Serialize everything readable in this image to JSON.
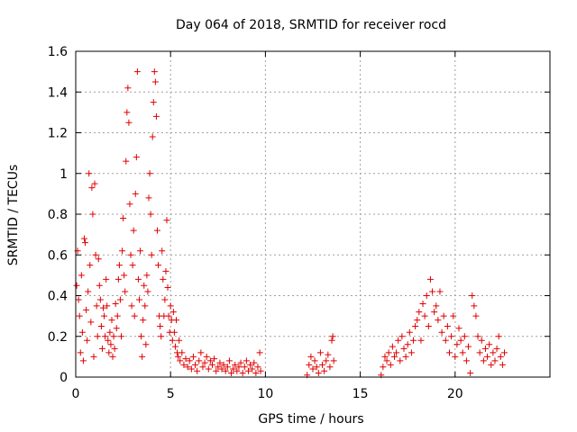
{
  "chart_data": {
    "type": "scatter",
    "title": "Day 064 of 2018, SRMTID for receiver rocd",
    "xlabel": "GPS time / hours",
    "ylabel": "SRMTID / TECUs",
    "xlim": [
      0,
      25
    ],
    "ylim": [
      0,
      1.6
    ],
    "xticks": [
      0,
      5,
      10,
      15,
      20
    ],
    "xtick_labels": [
      "0",
      "5",
      "10",
      "15",
      "20"
    ],
    "yticks": [
      0,
      0.2,
      0.4,
      0.6,
      0.8,
      1.0,
      1.2,
      1.4,
      1.6
    ],
    "ytick_labels": [
      "0",
      "0.2",
      "0.4",
      "0.6",
      "0.8",
      "1",
      "1.2",
      "1.4",
      "1.6"
    ],
    "grid": true,
    "marker": "+",
    "color": "#e00000",
    "series": [
      {
        "name": "SRMTID",
        "points": [
          [
            0.05,
            0.45
          ],
          [
            0.1,
            0.62
          ],
          [
            0.15,
            0.38
          ],
          [
            0.2,
            0.3
          ],
          [
            0.25,
            0.12
          ],
          [
            0.3,
            0.5
          ],
          [
            0.35,
            0.22
          ],
          [
            0.4,
            0.08
          ],
          [
            0.45,
            0.68
          ],
          [
            0.5,
            0.66
          ],
          [
            0.55,
            0.33
          ],
          [
            0.6,
            0.18
          ],
          [
            0.65,
            0.42
          ],
          [
            0.7,
            1.0
          ],
          [
            0.75,
            0.55
          ],
          [
            0.8,
            0.27
          ],
          [
            0.85,
            0.93
          ],
          [
            0.9,
            0.8
          ],
          [
            0.95,
            0.1
          ],
          [
            1.0,
            0.95
          ],
          [
            1.05,
            0.6
          ],
          [
            1.1,
            0.35
          ],
          [
            1.15,
            0.2
          ],
          [
            1.2,
            0.58
          ],
          [
            1.25,
            0.45
          ],
          [
            1.3,
            0.38
          ],
          [
            1.35,
            0.25
          ],
          [
            1.4,
            0.14
          ],
          [
            1.45,
            0.34
          ],
          [
            1.5,
            0.3
          ],
          [
            1.55,
            0.2
          ],
          [
            1.6,
            0.48
          ],
          [
            1.65,
            0.35
          ],
          [
            1.7,
            0.18
          ],
          [
            1.75,
            0.12
          ],
          [
            1.8,
            0.22
          ],
          [
            1.85,
            0.16
          ],
          [
            1.9,
            0.28
          ],
          [
            1.95,
            0.1
          ],
          [
            2.0,
            0.2
          ],
          [
            2.05,
            0.14
          ],
          [
            2.1,
            0.36
          ],
          [
            2.15,
            0.24
          ],
          [
            2.2,
            0.3
          ],
          [
            2.25,
            0.48
          ],
          [
            2.3,
            0.55
          ],
          [
            2.35,
            0.38
          ],
          [
            2.4,
            0.2
          ],
          [
            2.45,
            0.62
          ],
          [
            2.5,
            0.78
          ],
          [
            2.55,
            0.5
          ],
          [
            2.6,
            0.42
          ],
          [
            2.65,
            1.06
          ],
          [
            2.7,
            1.3
          ],
          [
            2.75,
            1.42
          ],
          [
            2.8,
            1.25
          ],
          [
            2.85,
            0.85
          ],
          [
            2.9,
            0.6
          ],
          [
            2.95,
            0.35
          ],
          [
            3.0,
            0.55
          ],
          [
            3.05,
            0.72
          ],
          [
            3.1,
            0.3
          ],
          [
            3.15,
            0.9
          ],
          [
            3.2,
            1.08
          ],
          [
            3.25,
            1.5
          ],
          [
            3.3,
            0.48
          ],
          [
            3.35,
            0.38
          ],
          [
            3.4,
            0.62
          ],
          [
            3.45,
            0.2
          ],
          [
            3.5,
            0.1
          ],
          [
            3.55,
            0.28
          ],
          [
            3.6,
            0.45
          ],
          [
            3.65,
            0.35
          ],
          [
            3.7,
            0.16
          ],
          [
            3.75,
            0.5
          ],
          [
            3.8,
            0.42
          ],
          [
            3.85,
            0.88
          ],
          [
            3.9,
            1.0
          ],
          [
            3.95,
            0.8
          ],
          [
            4.0,
            0.6
          ],
          [
            4.05,
            1.18
          ],
          [
            4.1,
            1.35
          ],
          [
            4.15,
            1.5
          ],
          [
            4.2,
            1.45
          ],
          [
            4.25,
            1.28
          ],
          [
            4.3,
            0.72
          ],
          [
            4.35,
            0.55
          ],
          [
            4.4,
            0.3
          ],
          [
            4.45,
            0.25
          ],
          [
            4.5,
            0.2
          ],
          [
            4.55,
            0.62
          ],
          [
            4.6,
            0.48
          ],
          [
            4.65,
            0.3
          ],
          [
            4.7,
            0.38
          ],
          [
            4.75,
            0.52
          ],
          [
            4.8,
            0.77
          ],
          [
            4.85,
            0.44
          ],
          [
            4.9,
            0.3
          ],
          [
            4.95,
            0.22
          ],
          [
            5.0,
            0.35
          ],
          [
            5.05,
            0.28
          ],
          [
            5.1,
            0.18
          ],
          [
            5.15,
            0.32
          ],
          [
            5.2,
            0.22
          ],
          [
            5.25,
            0.15
          ],
          [
            5.3,
            0.28
          ],
          [
            5.35,
            0.12
          ],
          [
            5.4,
            0.1
          ],
          [
            5.45,
            0.18
          ],
          [
            5.5,
            0.08
          ],
          [
            5.6,
            0.12
          ],
          [
            5.7,
            0.06
          ],
          [
            5.8,
            0.09
          ],
          [
            5.9,
            0.05
          ],
          [
            6.0,
            0.08
          ],
          [
            6.1,
            0.04
          ],
          [
            6.2,
            0.1
          ],
          [
            6.3,
            0.06
          ],
          [
            6.4,
            0.03
          ],
          [
            6.5,
            0.08
          ],
          [
            6.6,
            0.12
          ],
          [
            6.7,
            0.05
          ],
          [
            6.8,
            0.07
          ],
          [
            6.9,
            0.1
          ],
          [
            7.0,
            0.04
          ],
          [
            7.1,
            0.08
          ],
          [
            7.2,
            0.06
          ],
          [
            7.3,
            0.09
          ],
          [
            7.4,
            0.03
          ],
          [
            7.5,
            0.05
          ],
          [
            7.6,
            0.07
          ],
          [
            7.7,
            0.04
          ],
          [
            7.8,
            0.06
          ],
          [
            7.9,
            0.03
          ],
          [
            8.0,
            0.05
          ],
          [
            8.1,
            0.08
          ],
          [
            8.2,
            0.02
          ],
          [
            8.3,
            0.04
          ],
          [
            8.4,
            0.06
          ],
          [
            8.5,
            0.03
          ],
          [
            8.6,
            0.05
          ],
          [
            8.7,
            0.07
          ],
          [
            8.8,
            0.02
          ],
          [
            8.9,
            0.05
          ],
          [
            9.0,
            0.08
          ],
          [
            9.1,
            0.03
          ],
          [
            9.2,
            0.06
          ],
          [
            9.3,
            0.04
          ],
          [
            9.4,
            0.07
          ],
          [
            9.5,
            0.02
          ],
          [
            9.6,
            0.05
          ],
          [
            9.7,
            0.12
          ],
          [
            9.75,
            0.03
          ],
          [
            12.2,
            0.01
          ],
          [
            12.3,
            0.06
          ],
          [
            12.4,
            0.1
          ],
          [
            12.5,
            0.04
          ],
          [
            12.6,
            0.08
          ],
          [
            12.7,
            0.05
          ],
          [
            12.8,
            0.02
          ],
          [
            12.9,
            0.12
          ],
          [
            13.0,
            0.06
          ],
          [
            13.1,
            0.03
          ],
          [
            13.2,
            0.08
          ],
          [
            13.3,
            0.11
          ],
          [
            13.4,
            0.05
          ],
          [
            13.5,
            0.18
          ],
          [
            13.55,
            0.2
          ],
          [
            13.6,
            0.08
          ],
          [
            16.1,
            0.01
          ],
          [
            16.2,
            0.05
          ],
          [
            16.3,
            0.1
          ],
          [
            16.4,
            0.08
          ],
          [
            16.5,
            0.12
          ],
          [
            16.6,
            0.06
          ],
          [
            16.7,
            0.15
          ],
          [
            16.8,
            0.1
          ],
          [
            16.9,
            0.12
          ],
          [
            17.0,
            0.18
          ],
          [
            17.1,
            0.08
          ],
          [
            17.2,
            0.2
          ],
          [
            17.3,
            0.14
          ],
          [
            17.4,
            0.1
          ],
          [
            17.5,
            0.16
          ],
          [
            17.6,
            0.22
          ],
          [
            17.7,
            0.12
          ],
          [
            17.8,
            0.18
          ],
          [
            17.9,
            0.25
          ],
          [
            18.0,
            0.28
          ],
          [
            18.1,
            0.32
          ],
          [
            18.2,
            0.18
          ],
          [
            18.3,
            0.36
          ],
          [
            18.4,
            0.3
          ],
          [
            18.5,
            0.4
          ],
          [
            18.6,
            0.25
          ],
          [
            18.7,
            0.48
          ],
          [
            18.8,
            0.42
          ],
          [
            18.9,
            0.32
          ],
          [
            19.0,
            0.35
          ],
          [
            19.1,
            0.28
          ],
          [
            19.2,
            0.42
          ],
          [
            19.3,
            0.22
          ],
          [
            19.4,
            0.3
          ],
          [
            19.5,
            0.18
          ],
          [
            19.6,
            0.25
          ],
          [
            19.7,
            0.12
          ],
          [
            19.8,
            0.2
          ],
          [
            19.9,
            0.3
          ],
          [
            20.0,
            0.1
          ],
          [
            20.1,
            0.16
          ],
          [
            20.2,
            0.24
          ],
          [
            20.3,
            0.18
          ],
          [
            20.4,
            0.12
          ],
          [
            20.5,
            0.2
          ],
          [
            20.6,
            0.08
          ],
          [
            20.7,
            0.15
          ],
          [
            20.8,
            0.02
          ],
          [
            20.9,
            0.4
          ],
          [
            21.0,
            0.35
          ],
          [
            21.1,
            0.3
          ],
          [
            21.2,
            0.2
          ],
          [
            21.3,
            0.12
          ],
          [
            21.4,
            0.18
          ],
          [
            21.5,
            0.08
          ],
          [
            21.6,
            0.14
          ],
          [
            21.7,
            0.1
          ],
          [
            21.8,
            0.16
          ],
          [
            21.9,
            0.06
          ],
          [
            22.0,
            0.12
          ],
          [
            22.1,
            0.08
          ],
          [
            22.2,
            0.14
          ],
          [
            22.3,
            0.2
          ],
          [
            22.4,
            0.1
          ],
          [
            22.5,
            0.06
          ],
          [
            22.6,
            0.12
          ]
        ]
      }
    ]
  }
}
